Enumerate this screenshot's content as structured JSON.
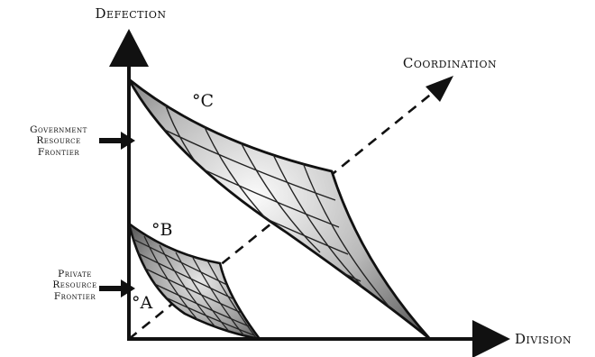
{
  "axes": {
    "y_label": "Defection",
    "x_label": "Division",
    "z_label": "Coordination"
  },
  "frontiers": {
    "government": [
      "Government",
      "Resource",
      "Frontier"
    ],
    "private": [
      "Private",
      "Resource",
      "Frontier"
    ]
  },
  "points": {
    "a": "°A",
    "b": "°B",
    "c": "°C"
  },
  "colors": {
    "ink": "#111111",
    "surface_light": "#f2f2f2",
    "surface_dark": "#6e6e6e"
  }
}
